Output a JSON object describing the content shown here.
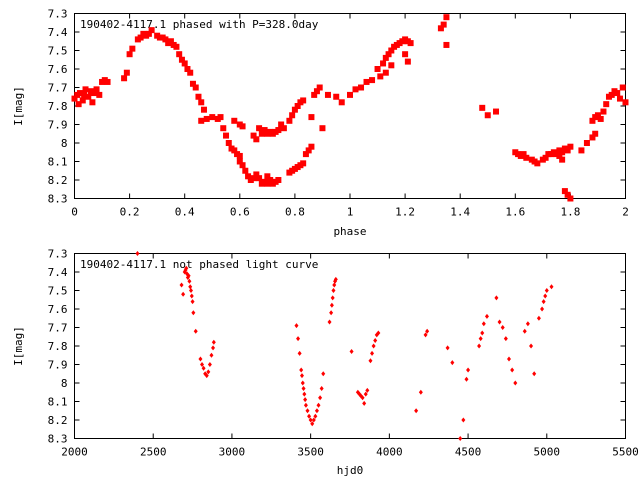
{
  "colors": {
    "points": "#ff0000",
    "axes": "#000000",
    "background": "#ffffff"
  },
  "chart_data": [
    {
      "type": "scatter",
      "title": "190402-4117.1 phased with P=328.0day",
      "xlabel": "phase",
      "ylabel": "I[mag]",
      "xlim": [
        0,
        2
      ],
      "ylim": [
        8.3,
        7.3
      ],
      "y_inverted": true,
      "grid": false,
      "marker": "filled-square",
      "xticks": [
        "0",
        "0.2",
        "0.4",
        "0.6",
        "0.8",
        "1",
        "1.2",
        "1.4",
        "1.6",
        "1.8",
        "2"
      ],
      "xtick_values": [
        0,
        0.2,
        0.4,
        0.6,
        0.8,
        1.0,
        1.2,
        1.4,
        1.6,
        1.8,
        2.0
      ],
      "yticks": [
        "7.3",
        "7.4",
        "7.5",
        "7.6",
        "7.7",
        "7.8",
        "7.9",
        "8",
        "8.1",
        "8.2",
        "8.3"
      ],
      "ytick_values": [
        7.3,
        7.4,
        7.5,
        7.6,
        7.7,
        7.8,
        7.9,
        8.0,
        8.1,
        8.2,
        8.3
      ],
      "points": [
        [
          0.0,
          7.76
        ],
        [
          0.01,
          7.74
        ],
        [
          0.015,
          7.79
        ],
        [
          0.02,
          7.73
        ],
        [
          0.03,
          7.77
        ],
        [
          0.035,
          7.74
        ],
        [
          0.04,
          7.71
        ],
        [
          0.05,
          7.75
        ],
        [
          0.06,
          7.72
        ],
        [
          0.065,
          7.78
        ],
        [
          0.07,
          7.73
        ],
        [
          0.08,
          7.71
        ],
        [
          0.09,
          7.74
        ],
        [
          0.1,
          7.67
        ],
        [
          0.11,
          7.66
        ],
        [
          0.12,
          7.67
        ],
        [
          0.18,
          7.65
        ],
        [
          0.19,
          7.62
        ],
        [
          0.2,
          7.52
        ],
        [
          0.21,
          7.49
        ],
        [
          0.23,
          7.44
        ],
        [
          0.24,
          7.43
        ],
        [
          0.25,
          7.41
        ],
        [
          0.26,
          7.42
        ],
        [
          0.27,
          7.41
        ],
        [
          0.28,
          7.39
        ],
        [
          0.3,
          7.42
        ],
        [
          0.31,
          7.43
        ],
        [
          0.32,
          7.43
        ],
        [
          0.33,
          7.44
        ],
        [
          0.34,
          7.46
        ],
        [
          0.35,
          7.45
        ],
        [
          0.36,
          7.47
        ],
        [
          0.37,
          7.48
        ],
        [
          0.38,
          7.52
        ],
        [
          0.39,
          7.55
        ],
        [
          0.4,
          7.57
        ],
        [
          0.41,
          7.6
        ],
        [
          0.42,
          7.62
        ],
        [
          0.43,
          7.68
        ],
        [
          0.44,
          7.7
        ],
        [
          0.45,
          7.75
        ],
        [
          0.46,
          7.78
        ],
        [
          0.47,
          7.82
        ],
        [
          0.46,
          7.88
        ],
        [
          0.48,
          7.87
        ],
        [
          0.5,
          7.86
        ],
        [
          0.52,
          7.87
        ],
        [
          0.53,
          7.86
        ],
        [
          0.54,
          7.92
        ],
        [
          0.55,
          7.96
        ],
        [
          0.56,
          8.0
        ],
        [
          0.57,
          8.03
        ],
        [
          0.58,
          8.04
        ],
        [
          0.59,
          8.06
        ],
        [
          0.6,
          8.07
        ],
        [
          0.58,
          7.88
        ],
        [
          0.6,
          7.9
        ],
        [
          0.61,
          7.91
        ],
        [
          0.6,
          8.1
        ],
        [
          0.61,
          8.12
        ],
        [
          0.62,
          8.15
        ],
        [
          0.63,
          8.18
        ],
        [
          0.64,
          8.2
        ],
        [
          0.65,
          8.19
        ],
        [
          0.66,
          8.17
        ],
        [
          0.67,
          8.19
        ],
        [
          0.68,
          8.22
        ],
        [
          0.69,
          8.21
        ],
        [
          0.7,
          8.22
        ],
        [
          0.71,
          8.2
        ],
        [
          0.72,
          8.22
        ],
        [
          0.73,
          8.21
        ],
        [
          0.74,
          8.2
        ],
        [
          0.65,
          7.96
        ],
        [
          0.66,
          7.98
        ],
        [
          0.67,
          7.92
        ],
        [
          0.68,
          7.95
        ],
        [
          0.69,
          7.93
        ],
        [
          0.7,
          7.95
        ],
        [
          0.71,
          7.94
        ],
        [
          0.72,
          7.95
        ],
        [
          0.73,
          7.94
        ],
        [
          0.74,
          7.93
        ],
        [
          0.75,
          7.9
        ],
        [
          0.76,
          7.92
        ],
        [
          0.7,
          8.18
        ],
        [
          0.71,
          8.2
        ],
        [
          0.78,
          8.16
        ],
        [
          0.79,
          8.15
        ],
        [
          0.8,
          8.14
        ],
        [
          0.81,
          8.13
        ],
        [
          0.82,
          8.12
        ],
        [
          0.83,
          8.11
        ],
        [
          0.78,
          7.88
        ],
        [
          0.79,
          7.85
        ],
        [
          0.8,
          7.82
        ],
        [
          0.81,
          7.8
        ],
        [
          0.82,
          7.78
        ],
        [
          0.83,
          7.77
        ],
        [
          0.84,
          8.06
        ],
        [
          0.85,
          8.04
        ],
        [
          0.86,
          8.02
        ],
        [
          0.86,
          7.86
        ],
        [
          0.87,
          7.74
        ],
        [
          0.88,
          7.72
        ],
        [
          0.89,
          7.7
        ],
        [
          0.9,
          7.92
        ],
        [
          0.92,
          7.74
        ],
        [
          0.95,
          7.75
        ],
        [
          0.97,
          7.78
        ],
        [
          1.0,
          7.74
        ],
        [
          1.02,
          7.71
        ],
        [
          1.04,
          7.7
        ],
        [
          1.06,
          7.67
        ],
        [
          1.08,
          7.66
        ],
        [
          1.1,
          7.6
        ],
        [
          1.12,
          7.57
        ],
        [
          1.13,
          7.54
        ],
        [
          1.14,
          7.52
        ],
        [
          1.15,
          7.5
        ],
        [
          1.16,
          7.48
        ],
        [
          1.17,
          7.47
        ],
        [
          1.18,
          7.46
        ],
        [
          1.19,
          7.45
        ],
        [
          1.2,
          7.44
        ],
        [
          1.21,
          7.45
        ],
        [
          1.22,
          7.46
        ],
        [
          1.11,
          7.64
        ],
        [
          1.13,
          7.62
        ],
        [
          1.15,
          7.58
        ],
        [
          1.2,
          7.52
        ],
        [
          1.21,
          7.56
        ],
        [
          1.33,
          7.38
        ],
        [
          1.34,
          7.36
        ],
        [
          1.35,
          7.32
        ],
        [
          1.35,
          7.47
        ],
        [
          1.48,
          7.81
        ],
        [
          1.5,
          7.85
        ],
        [
          1.53,
          7.83
        ],
        [
          1.6,
          8.05
        ],
        [
          1.61,
          8.06
        ],
        [
          1.62,
          8.07
        ],
        [
          1.63,
          8.06
        ],
        [
          1.64,
          8.08
        ],
        [
          1.66,
          8.09
        ],
        [
          1.67,
          8.1
        ],
        [
          1.68,
          8.11
        ],
        [
          1.7,
          8.09
        ],
        [
          1.71,
          8.08
        ],
        [
          1.72,
          8.06
        ],
        [
          1.73,
          8.06
        ],
        [
          1.74,
          8.05
        ],
        [
          1.75,
          8.06
        ],
        [
          1.76,
          8.04
        ],
        [
          1.77,
          8.05
        ],
        [
          1.78,
          8.03
        ],
        [
          1.79,
          8.04
        ],
        [
          1.8,
          8.02
        ],
        [
          1.76,
          8.07
        ],
        [
          1.77,
          8.09
        ],
        [
          1.78,
          8.26
        ],
        [
          1.79,
          8.28
        ],
        [
          1.8,
          8.3
        ],
        [
          1.84,
          8.04
        ],
        [
          1.86,
          8.0
        ],
        [
          1.88,
          7.97
        ],
        [
          1.89,
          7.95
        ],
        [
          1.88,
          7.88
        ],
        [
          1.89,
          7.86
        ],
        [
          1.9,
          7.85
        ],
        [
          1.91,
          7.87
        ],
        [
          1.92,
          7.83
        ],
        [
          1.93,
          7.79
        ],
        [
          1.94,
          7.75
        ],
        [
          1.95,
          7.74
        ],
        [
          1.96,
          7.72
        ],
        [
          1.97,
          7.73
        ],
        [
          1.98,
          7.76
        ],
        [
          1.99,
          7.7
        ],
        [
          2.0,
          7.78
        ]
      ]
    },
    {
      "type": "scatter",
      "title": "190402-4117.1 not phased light curve",
      "xlabel": "hjd0",
      "ylabel": "I[mag]",
      "xlim": [
        2000,
        5500
      ],
      "ylim": [
        8.3,
        7.3
      ],
      "y_inverted": true,
      "grid": false,
      "marker": "small-diamond",
      "xticks": [
        "2000",
        "2500",
        "3000",
        "3500",
        "4000",
        "4500",
        "5000",
        "5500"
      ],
      "xtick_values": [
        2000,
        2500,
        3000,
        3500,
        4000,
        4500,
        5000,
        5500
      ],
      "yticks": [
        "7.3",
        "7.4",
        "7.5",
        "7.6",
        "7.7",
        "7.8",
        "7.9",
        "8",
        "8.1",
        "8.2",
        "8.3"
      ],
      "ytick_values": [
        7.3,
        7.4,
        7.5,
        7.6,
        7.7,
        7.8,
        7.9,
        8.0,
        8.1,
        8.2,
        8.3
      ],
      "points": [
        [
          2400,
          7.3
        ],
        [
          2680,
          7.47
        ],
        [
          2690,
          7.52
        ],
        [
          2700,
          7.4
        ],
        [
          2705,
          7.39
        ],
        [
          2710,
          7.38
        ],
        [
          2715,
          7.41
        ],
        [
          2720,
          7.43
        ],
        [
          2725,
          7.42
        ],
        [
          2730,
          7.45
        ],
        [
          2735,
          7.48
        ],
        [
          2740,
          7.5
        ],
        [
          2745,
          7.53
        ],
        [
          2750,
          7.56
        ],
        [
          2755,
          7.62
        ],
        [
          2770,
          7.72
        ],
        [
          2800,
          7.87
        ],
        [
          2810,
          7.9
        ],
        [
          2820,
          7.92
        ],
        [
          2830,
          7.95
        ],
        [
          2840,
          7.96
        ],
        [
          2850,
          7.94
        ],
        [
          2860,
          7.9
        ],
        [
          2870,
          7.85
        ],
        [
          2880,
          7.81
        ],
        [
          2885,
          7.78
        ],
        [
          3410,
          7.69
        ],
        [
          3420,
          7.76
        ],
        [
          3430,
          7.84
        ],
        [
          3440,
          7.93
        ],
        [
          3445,
          7.96
        ],
        [
          3450,
          8.0
        ],
        [
          3455,
          8.03
        ],
        [
          3460,
          8.06
        ],
        [
          3465,
          8.09
        ],
        [
          3470,
          8.12
        ],
        [
          3480,
          8.15
        ],
        [
          3490,
          8.18
        ],
        [
          3500,
          8.2
        ],
        [
          3510,
          8.22
        ],
        [
          3520,
          8.2
        ],
        [
          3530,
          8.18
        ],
        [
          3540,
          8.15
        ],
        [
          3550,
          8.12
        ],
        [
          3560,
          8.08
        ],
        [
          3570,
          8.03
        ],
        [
          3580,
          7.95
        ],
        [
          3620,
          7.67
        ],
        [
          3630,
          7.62
        ],
        [
          3635,
          7.58
        ],
        [
          3640,
          7.54
        ],
        [
          3645,
          7.5
        ],
        [
          3650,
          7.47
        ],
        [
          3655,
          7.45
        ],
        [
          3660,
          7.44
        ],
        [
          3760,
          7.83
        ],
        [
          3800,
          8.05
        ],
        [
          3810,
          8.06
        ],
        [
          3820,
          8.07
        ],
        [
          3830,
          8.08
        ],
        [
          3840,
          8.11
        ],
        [
          3850,
          8.06
        ],
        [
          3860,
          8.04
        ],
        [
          3880,
          7.88
        ],
        [
          3890,
          7.84
        ],
        [
          3900,
          7.8
        ],
        [
          3910,
          7.77
        ],
        [
          3920,
          7.74
        ],
        [
          3930,
          7.73
        ],
        [
          4170,
          8.15
        ],
        [
          4200,
          8.05
        ],
        [
          4240,
          7.72
        ],
        [
          4230,
          7.74
        ],
        [
          4370,
          7.81
        ],
        [
          4400,
          7.89
        ],
        [
          4450,
          8.3
        ],
        [
          4470,
          8.2
        ],
        [
          4490,
          7.98
        ],
        [
          4500,
          7.93
        ],
        [
          4570,
          7.8
        ],
        [
          4580,
          7.76
        ],
        [
          4590,
          7.73
        ],
        [
          4600,
          7.68
        ],
        [
          4620,
          7.64
        ],
        [
          4680,
          7.54
        ],
        [
          4700,
          7.67
        ],
        [
          4720,
          7.7
        ],
        [
          4740,
          7.76
        ],
        [
          4760,
          7.87
        ],
        [
          4780,
          7.93
        ],
        [
          4800,
          8.0
        ],
        [
          4860,
          7.72
        ],
        [
          4880,
          7.68
        ],
        [
          4900,
          7.8
        ],
        [
          4920,
          7.95
        ],
        [
          4950,
          7.65
        ],
        [
          4970,
          7.6
        ],
        [
          4980,
          7.56
        ],
        [
          4990,
          7.53
        ],
        [
          5000,
          7.5
        ],
        [
          5030,
          7.48
        ]
      ]
    }
  ]
}
